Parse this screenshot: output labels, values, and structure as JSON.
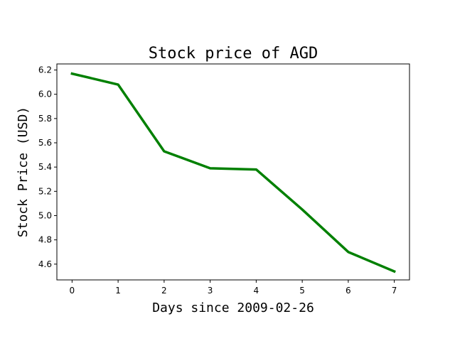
{
  "chart_data": {
    "type": "line",
    "title": "Stock price of AGD",
    "xlabel": "Days since 2009-02-26",
    "ylabel": "Stock Price (USD)",
    "x": [
      0,
      1,
      2,
      3,
      4,
      5,
      6,
      7
    ],
    "series": [
      {
        "values": [
          6.17,
          6.08,
          5.53,
          5.39,
          5.38,
          5.05,
          4.7,
          4.54
        ],
        "color": "#008000"
      }
    ],
    "xticks": [
      0,
      1,
      2,
      3,
      4,
      5,
      6,
      7
    ],
    "yticks": [
      4.6,
      4.8,
      5.0,
      5.2,
      5.4,
      5.6,
      5.8,
      6.0,
      6.2
    ],
    "xlim": [
      -0.33,
      7.33
    ],
    "ylim": [
      4.47,
      6.25
    ],
    "grid": false,
    "legend": "none"
  }
}
